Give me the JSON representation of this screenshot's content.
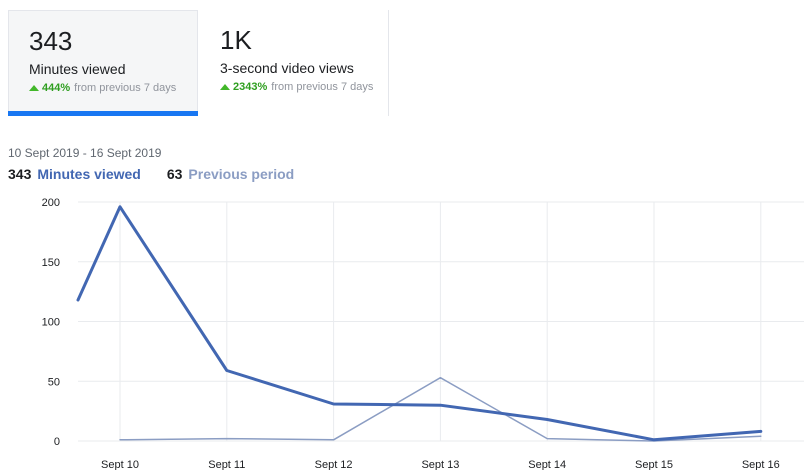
{
  "tabs": [
    {
      "value": "343",
      "label": "Minutes viewed",
      "change_pct": "444%",
      "change_text": "from previous 7 days",
      "active": true
    },
    {
      "value": "1K",
      "label": "3-second video views",
      "change_pct": "2343%",
      "change_text": "from previous 7 days",
      "active": false
    }
  ],
  "date_range": "10 Sept 2019 - 16 Sept 2019",
  "legend": {
    "current_value": "343",
    "current_label": "Minutes viewed",
    "previous_value": "63",
    "previous_label": "Previous period"
  },
  "colors": {
    "accent": "#1877f2",
    "current_series": "#4267b2",
    "previous_series": "#8b9dc3",
    "positive": "#42b72a"
  },
  "chart_data": {
    "type": "line",
    "categories": [
      "Sept 10",
      "Sept 11",
      "Sept 12",
      "Sept 13",
      "Sept 14",
      "Sept 15",
      "Sept 16"
    ],
    "yticks": [
      "0",
      "50",
      "100",
      "150",
      "200"
    ],
    "ylim": [
      0,
      200
    ],
    "grid": true,
    "series": [
      {
        "name": "Minutes viewed",
        "start_value": 118,
        "values": [
          196,
          59,
          31,
          30,
          18,
          1,
          8
        ]
      },
      {
        "name": "Previous period",
        "values": [
          1,
          2,
          1,
          53,
          2,
          0,
          4
        ]
      }
    ]
  }
}
